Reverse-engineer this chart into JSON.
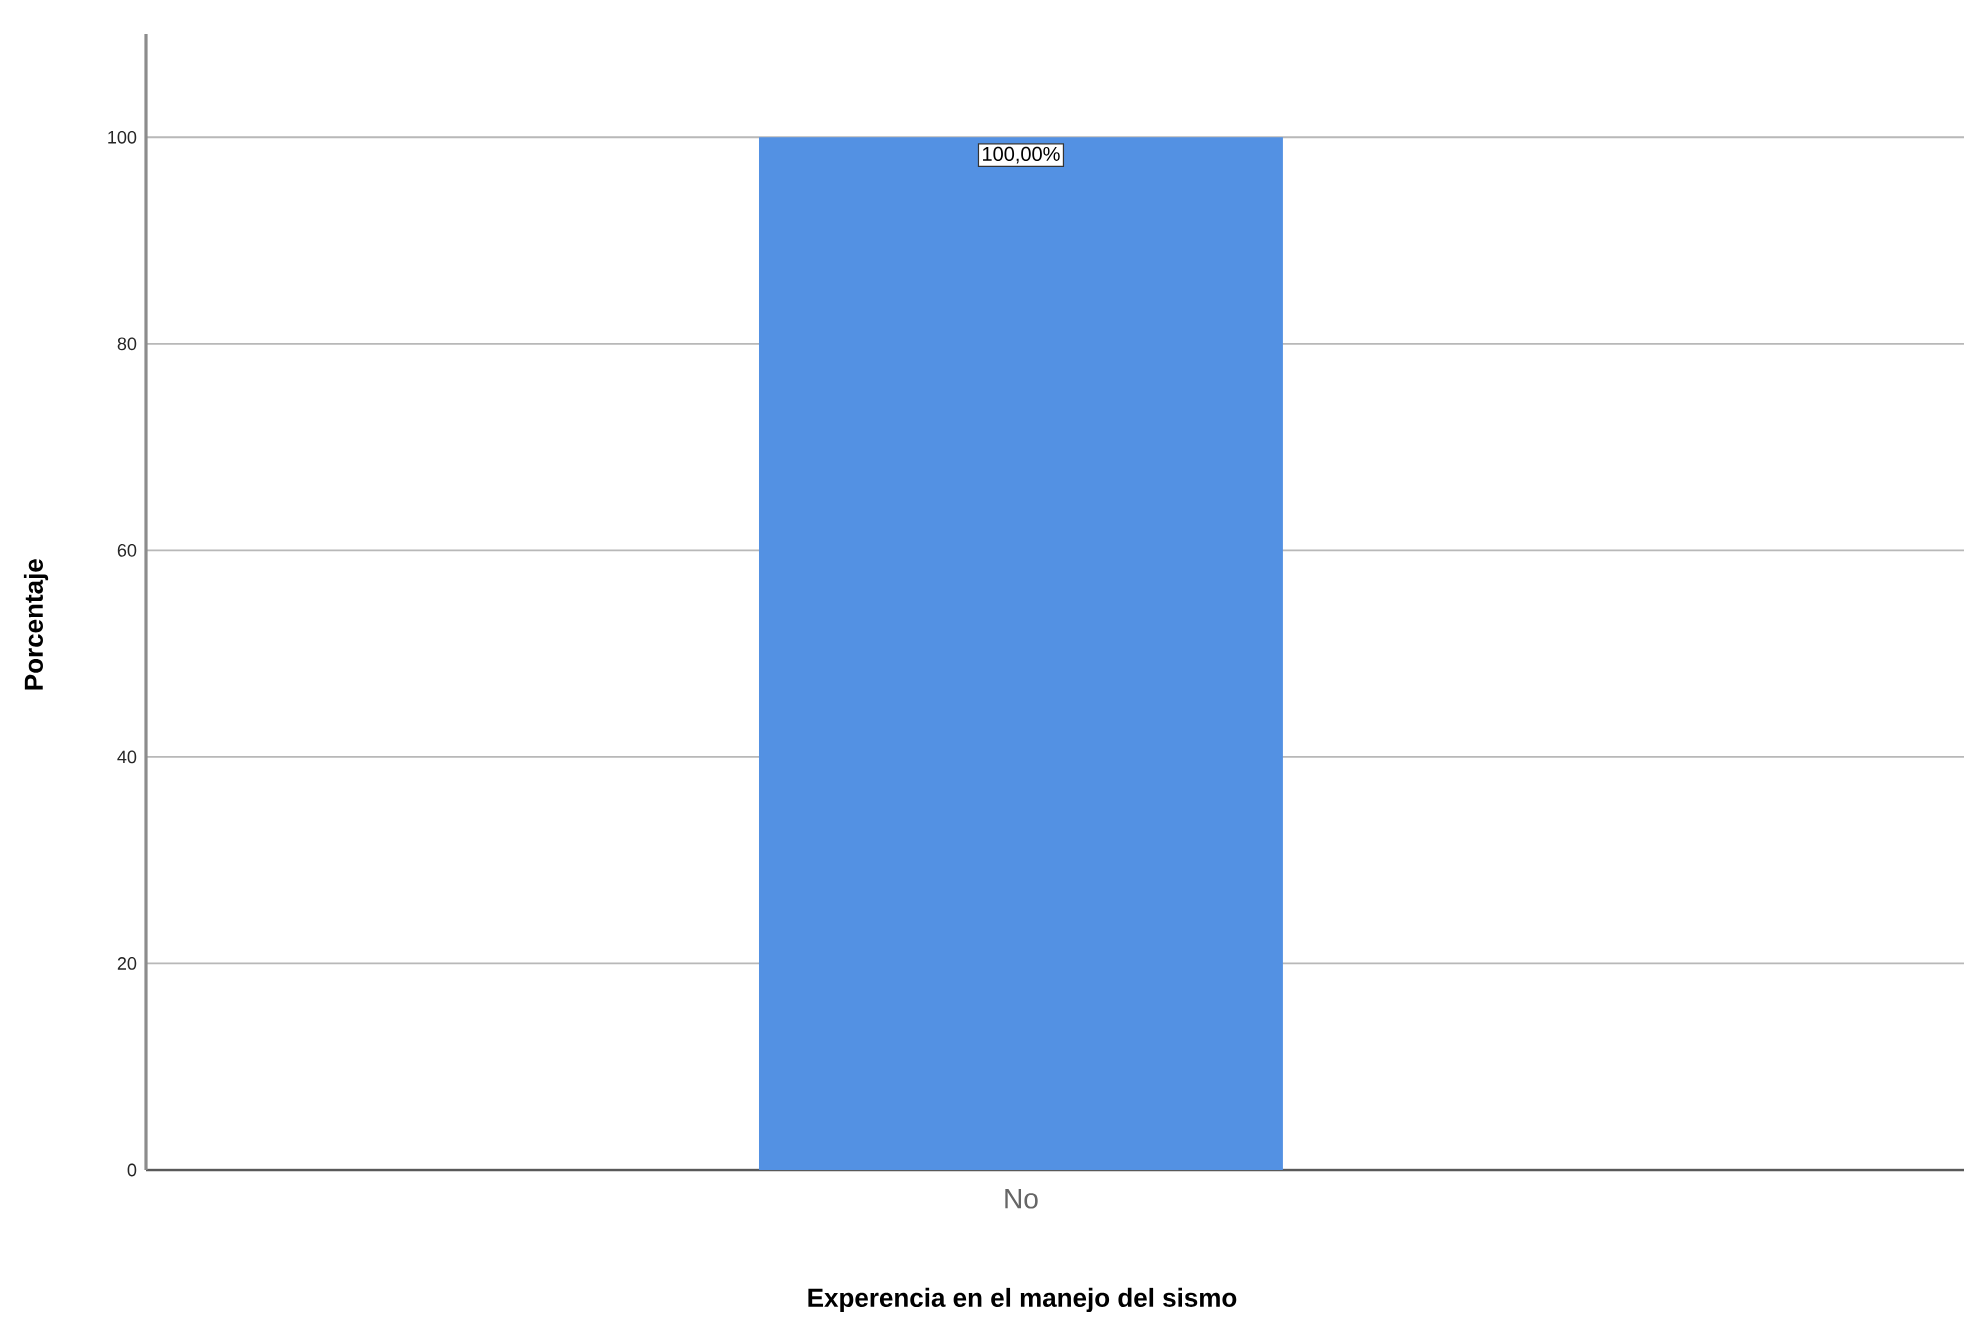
{
  "chart_data": {
    "type": "bar",
    "xlabel": "Experencia en el manejo del sismo",
    "ylabel": "Porcentaje",
    "categories": [
      "No"
    ],
    "values": [
      100
    ],
    "color": "#5391e3",
    "value_labels": [
      "100,00%"
    ],
    "ylim": [
      0,
      110
    ],
    "yticks": [
      0,
      20,
      40,
      60,
      80,
      100
    ],
    "grid": "y"
  }
}
